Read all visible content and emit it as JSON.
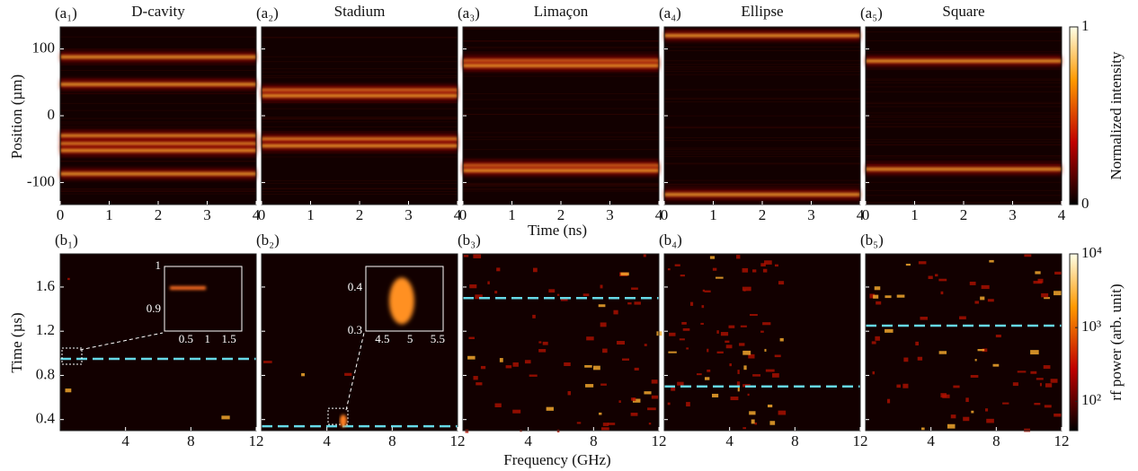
{
  "top_row": {
    "xlabel": "Time (ns)",
    "ylabel": "Position (µm)",
    "xlim": [
      0,
      4
    ],
    "xticks": [
      0,
      1,
      2,
      3,
      4
    ],
    "ylim": [
      -133,
      133
    ],
    "yticks": [
      -100,
      0,
      100
    ],
    "colorbar": {
      "label": "Normalized intensity",
      "lim": [
        0,
        1
      ],
      "ticks": [
        0,
        1
      ]
    },
    "panels": [
      {
        "tag": "(a₁)",
        "title": "D-cavity",
        "stripes": [
          88,
          47,
          -30,
          -42,
          -52,
          -87
        ]
      },
      {
        "tag": "(a₂)",
        "title": "Stadium",
        "stripes": [
          38,
          30,
          -35,
          -45
        ]
      },
      {
        "tag": "(a₃)",
        "title": "Limaçon",
        "stripes": [
          82,
          75,
          -75,
          -82
        ]
      },
      {
        "tag": "(a₄)",
        "title": "Ellipse",
        "stripes": [
          120,
          -118
        ]
      },
      {
        "tag": "(a₅)",
        "title": "Square",
        "stripes": [
          82,
          -80
        ]
      }
    ]
  },
  "bottom_row": {
    "xlabel": "Frequency (GHz)",
    "ylabel": "Time (µs)",
    "xlim": [
      0,
      12
    ],
    "xticks": [
      4,
      8,
      12
    ],
    "ylim": [
      0.3,
      1.9
    ],
    "yticks": [
      0.4,
      0.8,
      1.2,
      1.6
    ],
    "colorbar": {
      "label": "rf power (arb.   unit)",
      "log": true,
      "lim": [
        40,
        10000
      ],
      "ticks": [
        {
          "value": 100,
          "label": "10²"
        },
        {
          "value": 1000,
          "label": "10³"
        },
        {
          "value": 10000,
          "label": "10⁴"
        }
      ]
    },
    "panels": [
      {
        "tag": "(b₁)",
        "marker": 0.95,
        "inset": {
          "xlim": [
            0,
            1.8
          ],
          "ylim": [
            0.85,
            1.0
          ],
          "xticks": [
            0.5,
            1,
            1.5
          ],
          "yticks": [
            0.9,
            1
          ]
        }
      },
      {
        "tag": "(b₂)",
        "marker": 0.34,
        "inset": {
          "xlim": [
            4.2,
            5.6
          ],
          "ylim": [
            0.3,
            0.45
          ],
          "xticks": [
            4.5,
            5,
            5.5
          ],
          "yticks": [
            0.3,
            0.4
          ]
        }
      },
      {
        "tag": "(b₃)",
        "marker": 1.5
      },
      {
        "tag": "(b₄)",
        "marker": 0.7
      },
      {
        "tag": "(b₅)",
        "marker": 1.25
      }
    ]
  }
}
